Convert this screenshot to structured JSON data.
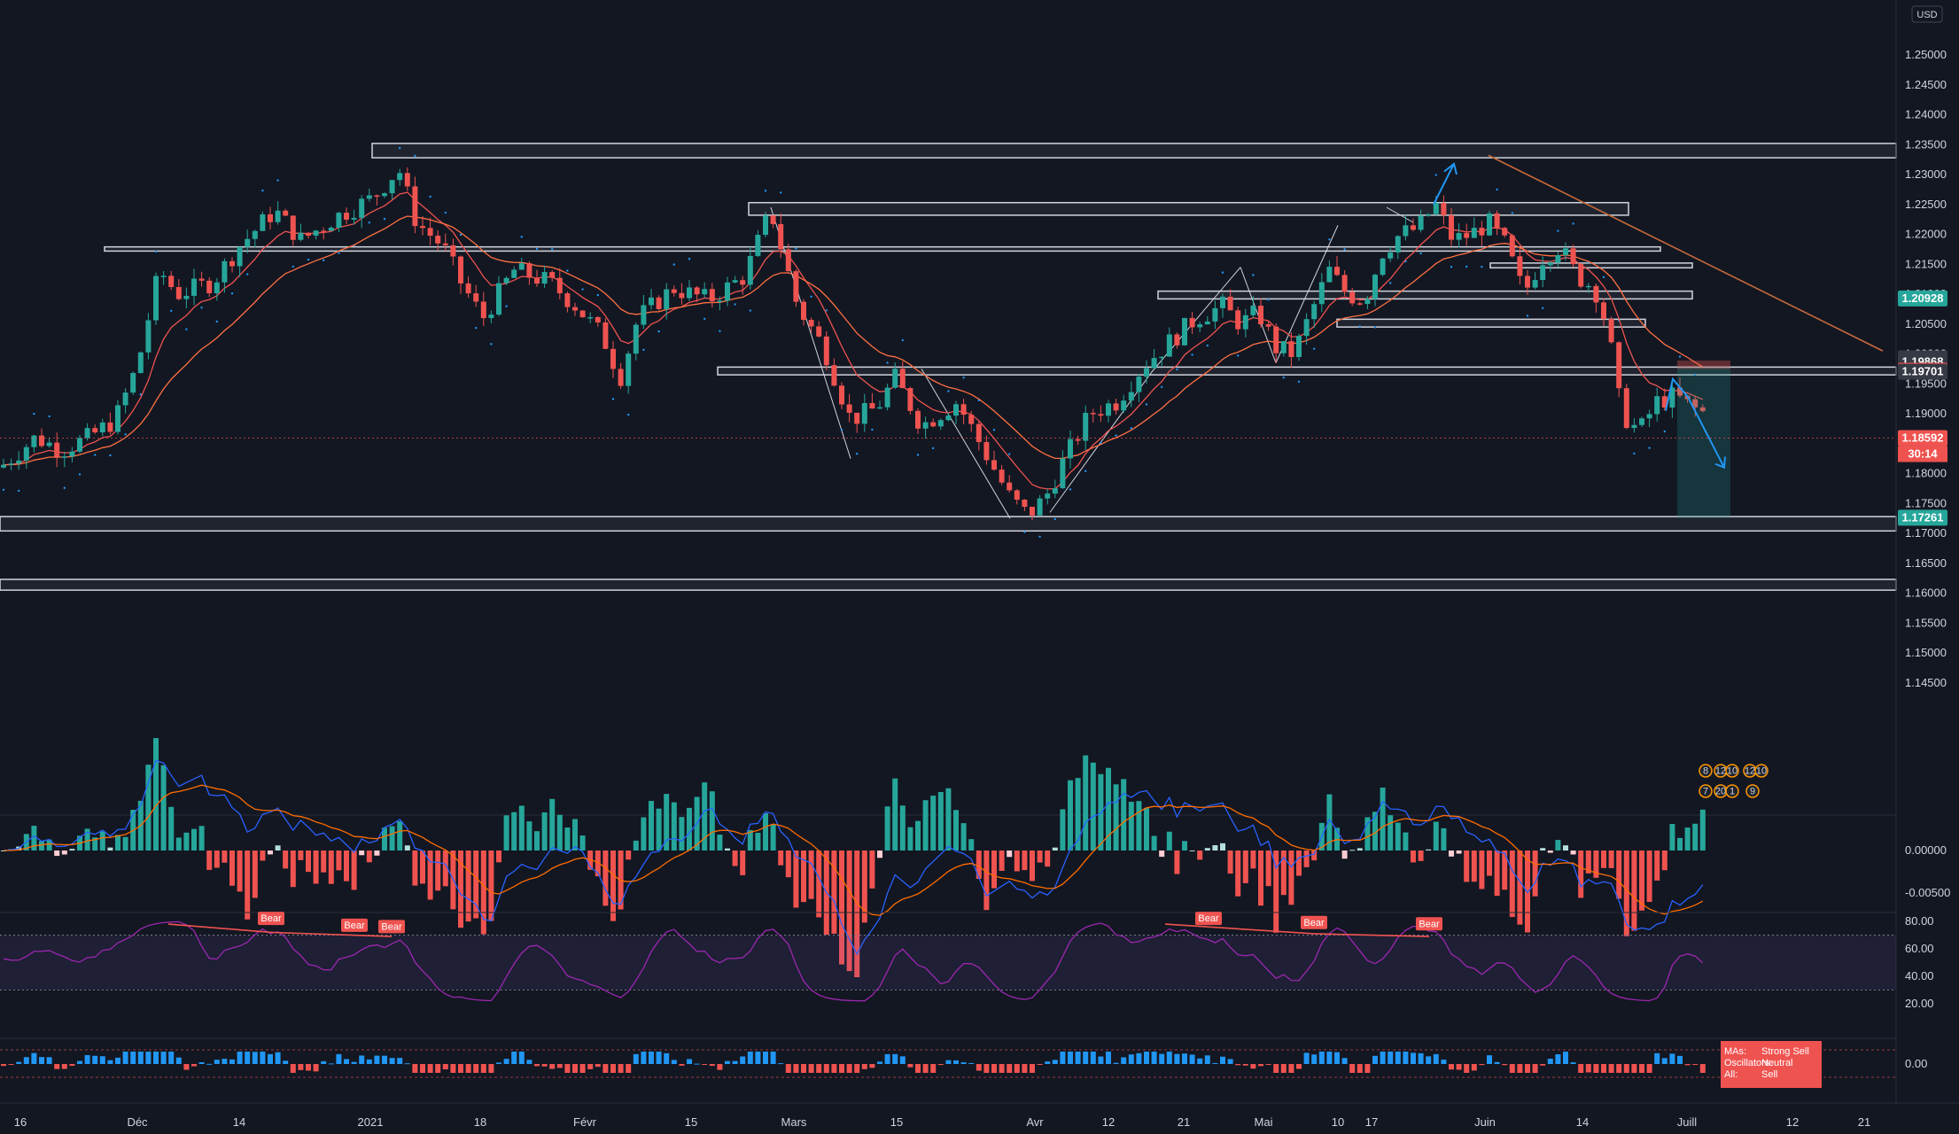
{
  "chart_data": {
    "type": "candlestick",
    "currency": "USD",
    "price_axis": {
      "min": 1.14,
      "max": 1.255,
      "ticks": [
        "1.25000",
        "1.24500",
        "1.24000",
        "1.23500",
        "1.23000",
        "1.22500",
        "1.22000",
        "1.21500",
        "1.21000",
        "1.20500",
        "1.20000",
        "1.19500",
        "1.19000",
        "1.18500",
        "1.18000",
        "1.17500",
        "1.17000",
        "1.16500",
        "1.16000",
        "1.15500",
        "1.15000",
        "1.14500"
      ],
      "tick_values": [
        1.25,
        1.245,
        1.24,
        1.235,
        1.23,
        1.225,
        1.22,
        1.215,
        1.21,
        1.205,
        1.2,
        1.195,
        1.19,
        1.185,
        1.18,
        1.175,
        1.17,
        1.165,
        1.16,
        1.155,
        1.15,
        1.145
      ]
    },
    "price_labels": [
      {
        "text": "1.20928",
        "value": 1.20928,
        "color": "#26a69a"
      },
      {
        "text": "1.19926",
        "value": 1.19926,
        "color": "#363a45"
      },
      {
        "text": "1.19868",
        "value": 1.19868,
        "color": "#363a45"
      },
      {
        "text": "1.19718",
        "value": 1.19718,
        "color": "#ef5350"
      },
      {
        "text": "1.19701",
        "value": 1.19701,
        "color": "#363a45"
      },
      {
        "text": "1.18592",
        "value": 1.18592,
        "color": "#ef5350"
      },
      {
        "text": "1.17261",
        "value": 1.17261,
        "color": "#26a69a"
      }
    ],
    "countdown": "30:14",
    "last_price": 1.18592,
    "time_axis": {
      "labels": [
        "16",
        "Déc",
        "14",
        "2021",
        "18",
        "Févr",
        "15",
        "Mars",
        "15",
        "Avr",
        "12",
        "21",
        "Mai",
        "10",
        "17",
        "Juin",
        "14",
        "Juill",
        "12",
        "21"
      ],
      "index": [
        23,
        155,
        270,
        418,
        542,
        660,
        780,
        896,
        1012,
        1168,
        1251,
        1336,
        1426,
        1510,
        1548,
        1676,
        1786,
        1904,
        2023,
        2104
      ]
    },
    "zones": [
      {
        "from": 1.2328,
        "to": 1.2352,
        "x_start": 420
      },
      {
        "from": 1.2232,
        "to": 1.2253,
        "x_start": 845,
        "x_end": 1838
      },
      {
        "from": 1.2172,
        "to": 1.2179,
        "x_start": 118,
        "x_end": 1874
      },
      {
        "from": 1.2144,
        "to": 1.2152,
        "x_start": 1682,
        "x_end": 1910
      },
      {
        "from": 1.2092,
        "to": 1.2105,
        "x_start": 1307,
        "x_end": 1910
      },
      {
        "from": 1.2045,
        "to": 1.2058,
        "x_start": 1509,
        "x_end": 1857
      },
      {
        "from": 1.1965,
        "to": 1.1978,
        "x_start": 810
      },
      {
        "from": 1.1704,
        "to": 1.1728,
        "x_start": 0
      },
      {
        "from": 1.1605,
        "to": 1.1623,
        "x_start": 0
      }
    ],
    "macd_axis": {
      "ticks": [
        "0.00000",
        "-0.00500"
      ],
      "tick_values": [
        0,
        -0.005
      ]
    },
    "rsi_axis": {
      "ticks": [
        "80.00",
        "60.00",
        "40.00",
        "20.00"
      ],
      "tick_values": [
        80,
        60,
        40,
        20
      ]
    },
    "rsi_bear_labels": [
      {
        "text": "Bear",
        "x": 306,
        "value": 78
      },
      {
        "text": "Bear",
        "x": 400,
        "value": 73
      },
      {
        "text": "Bear",
        "x": 442,
        "value": 72
      },
      {
        "text": "Bear",
        "x": 1364,
        "value": 78
      },
      {
        "text": "Bear",
        "x": 1483,
        "value": 75
      },
      {
        "text": "Bear",
        "x": 1613,
        "value": 74
      }
    ],
    "rating_axis": {
      "ticks": [
        "0.00"
      ],
      "tick_values": [
        0
      ]
    },
    "rating_legend": {
      "mas_label": "MAs:",
      "mas_value": "Strong Sell",
      "osc_label": "Oscillators:",
      "osc_value": "Neutral",
      "all_label": "All:",
      "all_value": "Sell"
    },
    "event_badges": [
      "8",
      "12",
      "10",
      "12",
      "10",
      "7",
      "20",
      "1",
      "9"
    ],
    "colors": {
      "bull": "#26a69a",
      "bear": "#ef5350",
      "background": "#131722",
      "macd": "#2962ff",
      "signal": "#ff6d00",
      "rsi": "#9c27b0"
    }
  }
}
